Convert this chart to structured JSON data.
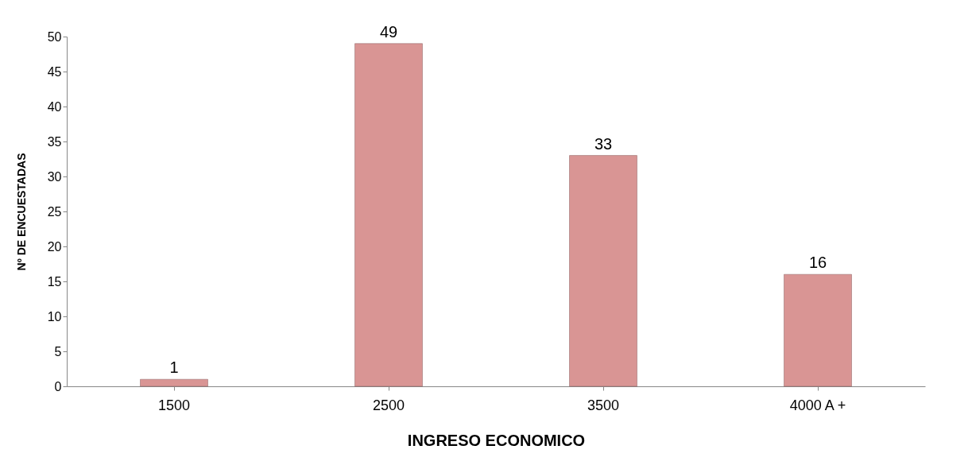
{
  "chart_data": {
    "type": "bar",
    "xlabel": "INGRESO ECONOMICO",
    "ylabel": "Nº DE ENCUESTADAS",
    "categories": [
      "1500",
      "2500",
      "3500",
      "4000 A +"
    ],
    "values": [
      1,
      49,
      33,
      16
    ],
    "color": "#d99594",
    "ylim": [
      0,
      50
    ],
    "yticks": [
      0,
      5,
      10,
      15,
      20,
      25,
      30,
      35,
      40,
      45,
      50
    ],
    "grid": false,
    "data_labels": true
  }
}
